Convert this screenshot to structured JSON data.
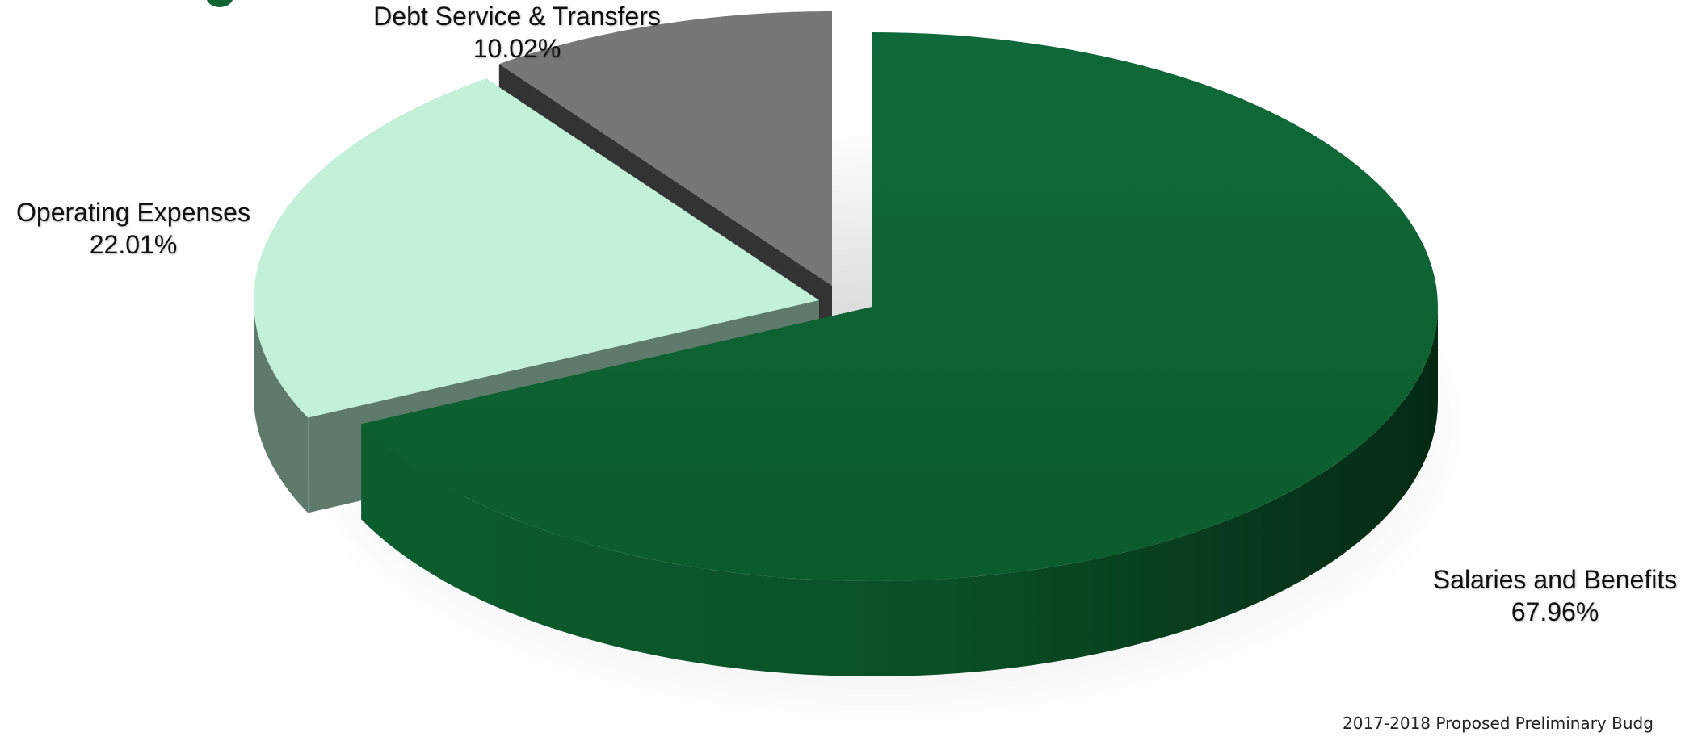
{
  "chart_data": {
    "type": "pie",
    "style": "3d-exploded",
    "title": "",
    "slices": [
      {
        "label": "Salaries and Benefits",
        "value": 67.96,
        "value_text": "67.96%",
        "color": "#0E6532"
      },
      {
        "label": "Operating Expenses",
        "value": 22.01,
        "value_text": "22.01%",
        "color": "#C2F0D8"
      },
      {
        "label": "Debt Service & Transfers",
        "value": 10.02,
        "value_text": "10.02%",
        "color": "#777777"
      }
    ]
  },
  "footer": {
    "text": "2017-2018 Proposed Preliminary Budg"
  },
  "colors": {
    "logo": "#0E6532",
    "salaries_side": "#073E1E",
    "operating_side": "#5E7A6B",
    "debt_side": "#333333"
  }
}
